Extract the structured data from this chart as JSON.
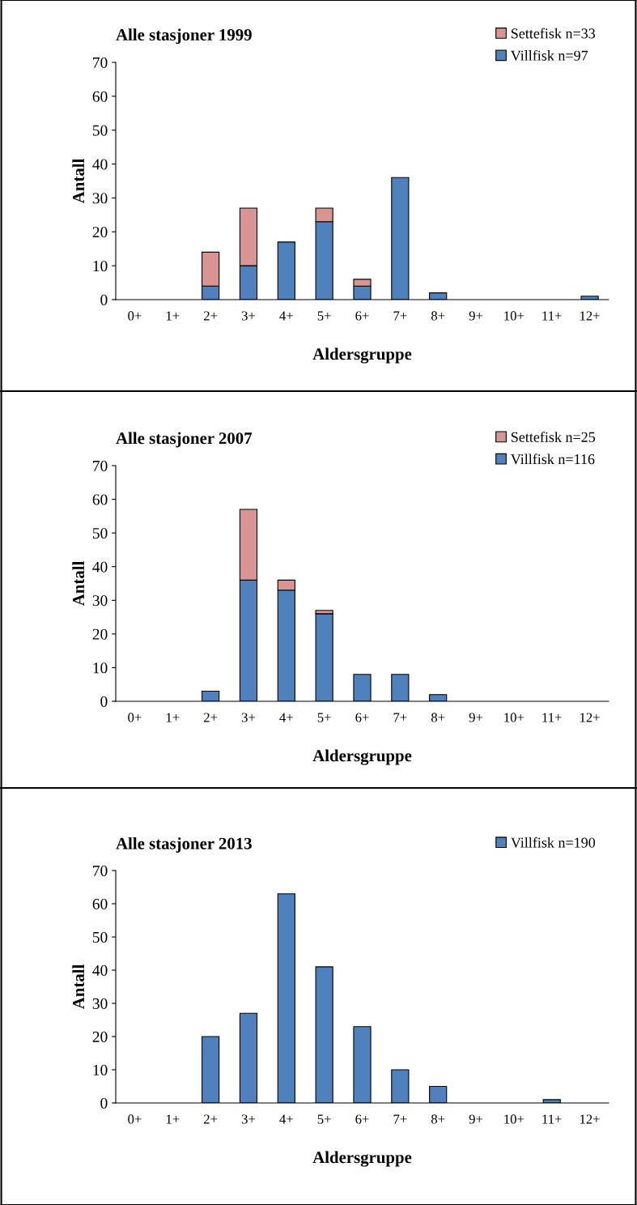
{
  "chart_data": [
    {
      "type": "bar",
      "stacked": true,
      "title": "Alle stasjoner 1999",
      "xlabel": "Aldersgruppe",
      "ylabel": "Antall",
      "categories": [
        "0+",
        "1+",
        "2+",
        "3+",
        "4+",
        "5+",
        "6+",
        "7+",
        "8+",
        "9+",
        "10+",
        "11+",
        "12+"
      ],
      "ylim": [
        0,
        70
      ],
      "yticks": [
        0,
        10,
        20,
        30,
        40,
        50,
        60,
        70
      ],
      "legend": "top right",
      "grid": false,
      "series": [
        {
          "name": "Villfisk n=97",
          "color": "#4f81bd",
          "values": [
            0,
            0,
            4,
            10,
            17,
            23,
            4,
            36,
            2,
            0,
            0,
            0,
            1
          ]
        },
        {
          "name": "Settefisk n=33",
          "color": "#d99594",
          "values": [
            0,
            0,
            10,
            17,
            0,
            4,
            2,
            0,
            0,
            0,
            0,
            0,
            0
          ]
        }
      ]
    },
    {
      "type": "bar",
      "stacked": true,
      "title": "Alle stasjoner 2007",
      "xlabel": "Aldersgruppe",
      "ylabel": "Antall",
      "categories": [
        "0+",
        "1+",
        "2+",
        "3+",
        "4+",
        "5+",
        "6+",
        "7+",
        "8+",
        "9+",
        "10+",
        "11+",
        "12+"
      ],
      "ylim": [
        0,
        70
      ],
      "yticks": [
        0,
        10,
        20,
        30,
        40,
        50,
        60,
        70
      ],
      "legend": "top right",
      "grid": false,
      "series": [
        {
          "name": "Villfisk n=116",
          "color": "#4f81bd",
          "values": [
            0,
            0,
            3,
            36,
            33,
            26,
            8,
            8,
            2,
            0,
            0,
            0,
            0
          ]
        },
        {
          "name": "Settefisk n=25",
          "color": "#d99594",
          "values": [
            0,
            0,
            0,
            21,
            3,
            1,
            0,
            0,
            0,
            0,
            0,
            0,
            0
          ]
        }
      ]
    },
    {
      "type": "bar",
      "stacked": true,
      "title": "Alle stasjoner 2013",
      "xlabel": "Aldersgruppe",
      "ylabel": "Antall",
      "categories": [
        "0+",
        "1+",
        "2+",
        "3+",
        "4+",
        "5+",
        "6+",
        "7+",
        "8+",
        "9+",
        "10+",
        "11+",
        "12+"
      ],
      "ylim": [
        0,
        70
      ],
      "yticks": [
        0,
        10,
        20,
        30,
        40,
        50,
        60,
        70
      ],
      "legend": "top right",
      "grid": false,
      "series": [
        {
          "name": "Villfisk n=190",
          "color": "#4f81bd",
          "values": [
            0,
            0,
            20,
            27,
            63,
            41,
            23,
            10,
            5,
            0,
            0,
            1,
            0
          ]
        }
      ]
    }
  ]
}
